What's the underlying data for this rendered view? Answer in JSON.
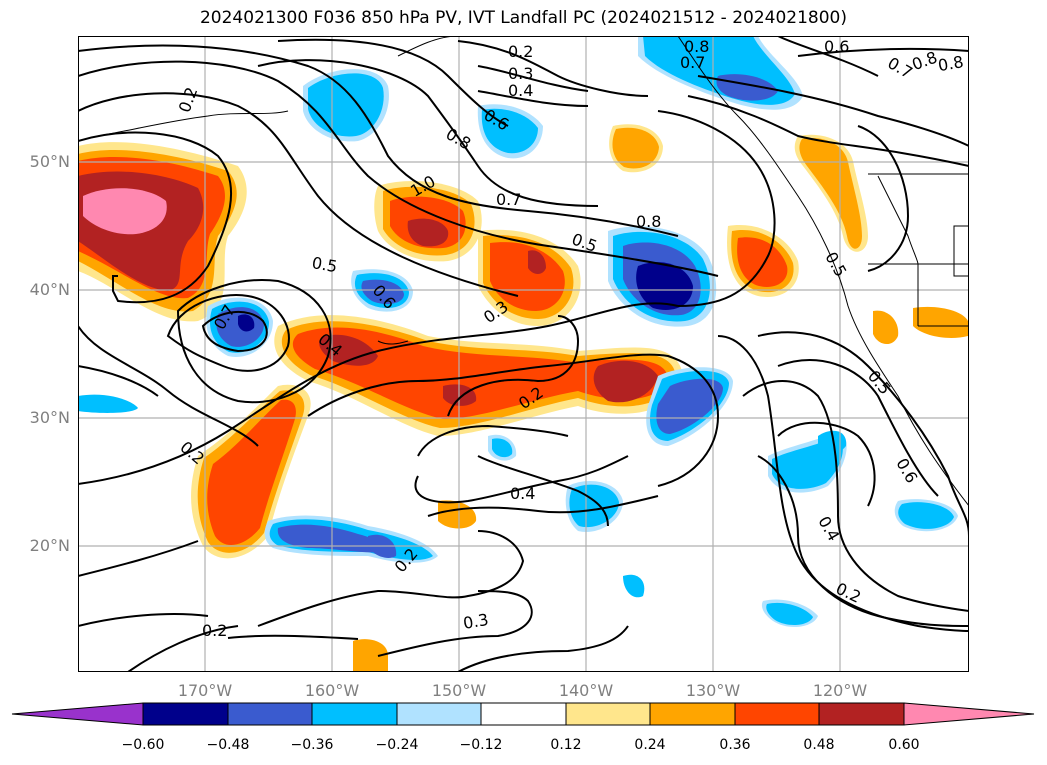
{
  "title": "2024021300 F036 850 hPa PV, IVT Landfall PC (2024021512 - 2024021800)",
  "map": {
    "lat_labels": [
      "50°N",
      "40°N",
      "30°N",
      "20°N"
    ],
    "lon_labels": [
      "170°W",
      "160°W",
      "150°W",
      "140°W",
      "130°W",
      "120°W"
    ],
    "contour_labels": [
      "0.2",
      "0.2",
      "0.3",
      "0.4",
      "0.6",
      "0.8",
      "0.7",
      "0.8",
      "1.0",
      "0.7",
      "0.8",
      "0.5",
      "0.5",
      "0.6",
      "0.7",
      "0.3",
      "0.4",
      "0.2",
      "0.4",
      "0.2",
      "0.6",
      "0.5",
      "0.4",
      "0.2",
      "0.2",
      "0.3",
      "0.6",
      "0.8",
      "0.7",
      "0.8",
      "0.5",
      "0.2"
    ],
    "colors": {
      "neg_extreme": "#9932cc",
      "neg_060": "#00008b",
      "neg_048": "#3a5bcf",
      "neg_036": "#00bfff",
      "neg_024": "#b0e2ff",
      "neutral": "#ffffff",
      "pos_012": "#ffe68c",
      "pos_024": "#ffa500",
      "pos_036": "#ff4500",
      "pos_048": "#b22222",
      "pos_060": "#ff88b0"
    }
  },
  "colorbar": {
    "ticks": [
      "−0.60",
      "−0.48",
      "−0.36",
      "−0.24",
      "−0.12",
      "0.12",
      "0.24",
      "0.36",
      "0.48",
      "0.60"
    ]
  }
}
